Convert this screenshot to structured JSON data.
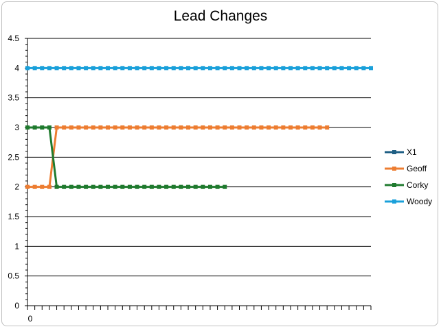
{
  "chart_data": {
    "type": "line",
    "title": "Lead Changes",
    "xlabel": "",
    "ylabel": "",
    "ylim": [
      0,
      4.5
    ],
    "yticks": [
      "0",
      "0.5",
      "1",
      "1.5",
      "2",
      "2.5",
      "3",
      "3.5",
      "4",
      "4.5"
    ],
    "xtick_labels": [
      "0"
    ],
    "x_count": 48,
    "grid": true,
    "legend_position": "right",
    "series": [
      {
        "name": "X1",
        "color": "#1f5f84",
        "x": [],
        "values": []
      },
      {
        "name": "Geoff",
        "color": "#ed7d31",
        "x": [
          0,
          1,
          2,
          3,
          4,
          5,
          6,
          7,
          8,
          9,
          10,
          11,
          12,
          13,
          14,
          15,
          16,
          17,
          18,
          19,
          20,
          21,
          22,
          23,
          24,
          25,
          26,
          27,
          28,
          29,
          30,
          31,
          32,
          33,
          34,
          35,
          36,
          37,
          38,
          39,
          40,
          41
        ],
        "values": [
          2,
          2,
          2,
          2,
          3,
          3,
          3,
          3,
          3,
          3,
          3,
          3,
          3,
          3,
          3,
          3,
          3,
          3,
          3,
          3,
          3,
          3,
          3,
          3,
          3,
          3,
          3,
          3,
          3,
          3,
          3,
          3,
          3,
          3,
          3,
          3,
          3,
          3,
          3,
          3,
          3,
          3
        ]
      },
      {
        "name": "Corky",
        "color": "#1f7a2e",
        "x": [
          0,
          1,
          2,
          3,
          4,
          5,
          6,
          7,
          8,
          9,
          10,
          11,
          12,
          13,
          14,
          15,
          16,
          17,
          18,
          19,
          20,
          21,
          22,
          23,
          24,
          25,
          26,
          27
        ],
        "values": [
          3,
          3,
          3,
          3,
          2,
          2,
          2,
          2,
          2,
          2,
          2,
          2,
          2,
          2,
          2,
          2,
          2,
          2,
          2,
          2,
          2,
          2,
          2,
          2,
          2,
          2,
          2,
          2
        ]
      },
      {
        "name": "Woody",
        "color": "#1aa0da",
        "x": [
          0,
          1,
          2,
          3,
          4,
          5,
          6,
          7,
          8,
          9,
          10,
          11,
          12,
          13,
          14,
          15,
          16,
          17,
          18,
          19,
          20,
          21,
          22,
          23,
          24,
          25,
          26,
          27,
          28,
          29,
          30,
          31,
          32,
          33,
          34,
          35,
          36,
          37,
          38,
          39,
          40,
          41,
          42,
          43,
          44,
          45,
          46,
          47
        ],
        "values": [
          4,
          4,
          4,
          4,
          4,
          4,
          4,
          4,
          4,
          4,
          4,
          4,
          4,
          4,
          4,
          4,
          4,
          4,
          4,
          4,
          4,
          4,
          4,
          4,
          4,
          4,
          4,
          4,
          4,
          4,
          4,
          4,
          4,
          4,
          4,
          4,
          4,
          4,
          4,
          4,
          4,
          4,
          4,
          4,
          4,
          4,
          4,
          4
        ]
      }
    ]
  }
}
